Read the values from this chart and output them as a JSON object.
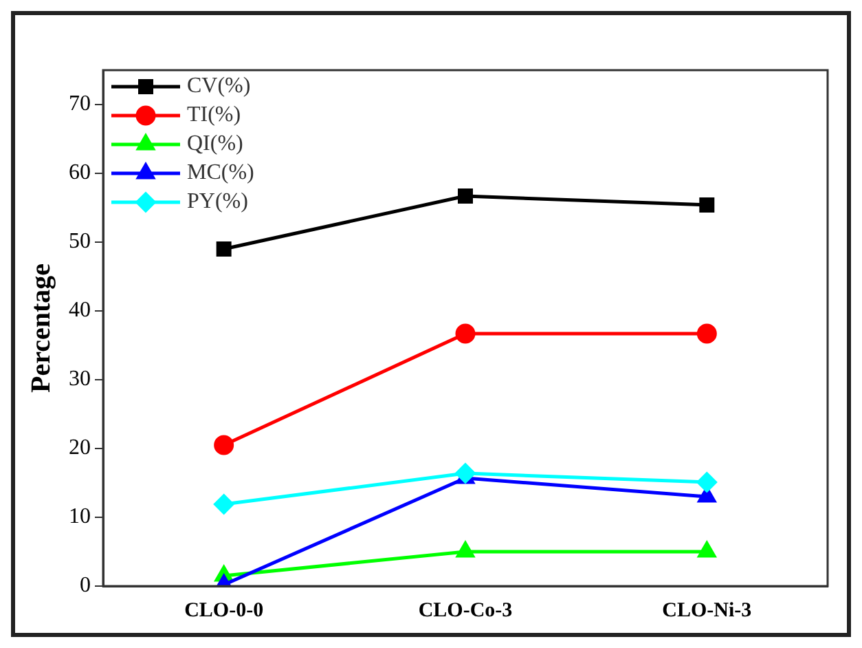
{
  "chart_data": {
    "type": "line",
    "ylabel": "Percentage",
    "categories": [
      "CLO-0-0",
      "CLO-Co-3",
      "CLO-Ni-3"
    ],
    "ylim": [
      0,
      75
    ],
    "yticks": [
      0,
      10,
      20,
      30,
      40,
      50,
      60,
      70
    ],
    "grid": false,
    "legend": "top left",
    "line_style": "solid",
    "series": [
      {
        "name": "CV(%)",
        "color": "#000000",
        "marker": "square",
        "values": [
          49,
          56.7,
          55.4
        ]
      },
      {
        "name": "TI(%)",
        "color": "#ff0000",
        "marker": "circle",
        "values": [
          20.5,
          36.7,
          36.7
        ]
      },
      {
        "name": "QI(%)",
        "color": "#00ff00",
        "marker": "triangle",
        "values": [
          1.5,
          5,
          5
        ]
      },
      {
        "name": "MC(%)",
        "color": "#0000ff",
        "marker": "triangle",
        "values": [
          0.2,
          15.7,
          13
        ]
      },
      {
        "name": "PY(%)",
        "color": "#00ffff",
        "marker": "diamond",
        "values": [
          11.9,
          16.4,
          15.1
        ]
      }
    ]
  }
}
